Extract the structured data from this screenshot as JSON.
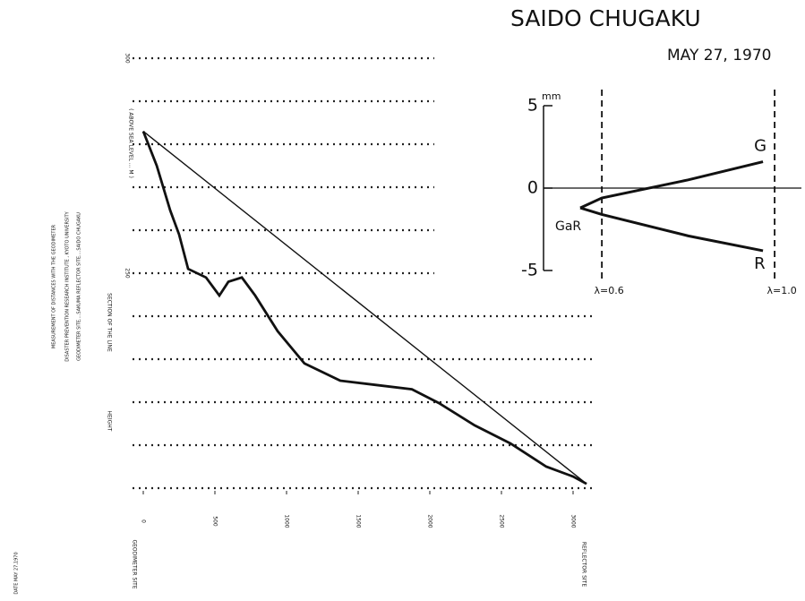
{
  "chart_data": [
    {
      "type": "line",
      "y_label": "( ABOVE SEA LEVEL ... M )",
      "y_label2": "SECTION OF THE LINE",
      "y_label3": "HEIGHT",
      "start_label": "GEODIMETER SITE",
      "end_label": "REFLECTOR SITE",
      "notes": [
        "MEASUREMENT OF DISTANCES WITH THE GEODIMETER",
        "DISASTER PREVENTION RESEARCH INSTITUTE , KYOTO UNIVERSITY",
        "GEODIMETER SITE....SAKUMA   REFLECTOR SITE....SAIDO CHUGAKU",
        "DATE MAY 27,1970"
      ],
      "x": [
        0,
        94,
        188,
        250,
        313,
        438,
        531,
        594,
        688,
        781,
        938,
        1125,
        1375,
        1625,
        1875,
        2063,
        2313,
        2563,
        2813,
        3000,
        3094
      ],
      "series": [
        {
          "name": "profile",
          "color": "#111",
          "x": [
            0,
            94,
            188,
            250,
            313,
            438,
            531,
            594,
            688,
            781,
            938,
            1125,
            1375,
            1625,
            1875,
            2063,
            2313,
            2563,
            2813,
            3000,
            3094
          ],
          "values": [
            283,
            275,
            264.6,
            259,
            251,
            249,
            244.8,
            248,
            249,
            244.8,
            236.5,
            229,
            225,
            224,
            223,
            219.8,
            214.6,
            210.4,
            205,
            202.7,
            201
          ]
        },
        {
          "name": "line of sight",
          "color": "#111",
          "x": [
            0,
            3094
          ],
          "values": [
            283,
            201
          ]
        }
      ],
      "xlim": [
        0,
        3100
      ],
      "xticks": [
        0,
        500,
        1000,
        1500,
        2000,
        2500,
        3000
      ],
      "ylim": [
        200,
        300
      ],
      "yticks": [
        250,
        300
      ],
      "gridlines": [
        200,
        210,
        220,
        230,
        240,
        250,
        260,
        270,
        280,
        290,
        300
      ]
    },
    {
      "type": "line",
      "title": "SAIDO CHUGAKU",
      "subtitle": "MAY 27, 1970",
      "y_unit": "mm",
      "series": [
        {
          "name": "G",
          "color": "#111",
          "x": [
            0.55,
            0.6,
            0.8,
            0.973
          ],
          "values": [
            -1.2,
            -0.6,
            0.5,
            1.6
          ]
        },
        {
          "name": "R",
          "color": "#111",
          "x": [
            0.55,
            0.6,
            0.8,
            0.973
          ],
          "values": [
            -1.2,
            -1.6,
            -2.9,
            -3.8
          ]
        }
      ],
      "origin_label": "GaR",
      "xlim": [
        0.465,
        1.062
      ],
      "xticks": [
        {
          "value": 0.6,
          "label": "λ=0.6"
        },
        {
          "value": 1.0,
          "label": "λ=1.0"
        }
      ],
      "ylim": [
        -5,
        5
      ],
      "yticks": [
        5,
        0,
        -5
      ]
    }
  ]
}
